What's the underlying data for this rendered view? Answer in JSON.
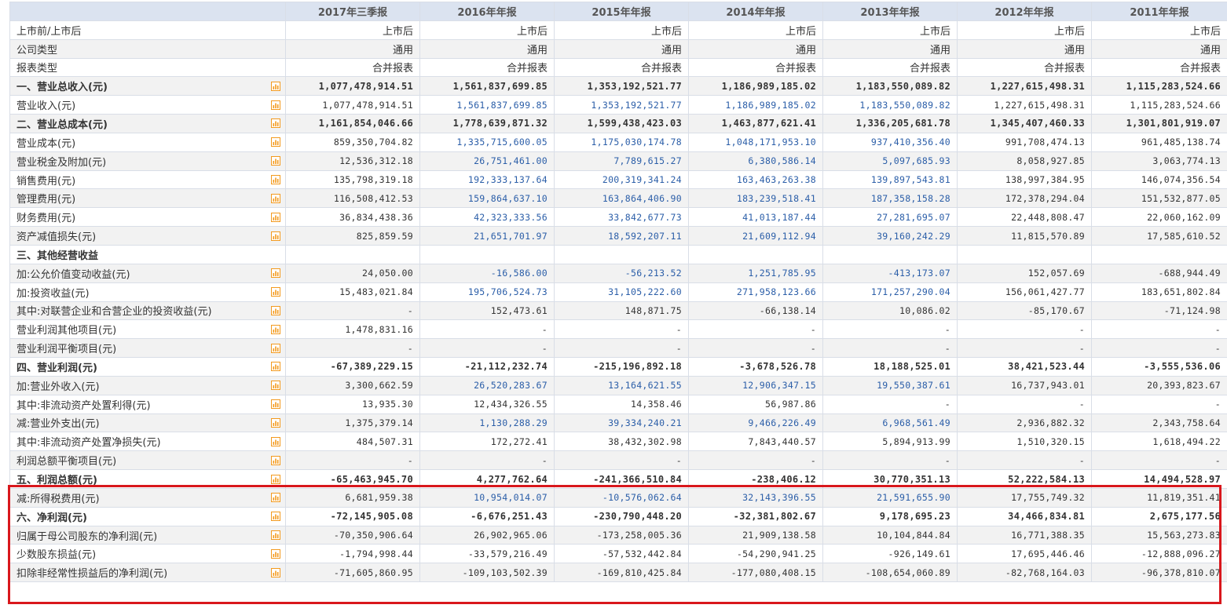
{
  "periods": [
    "2017年三季报",
    "2016年年报",
    "2015年年报",
    "2014年年报",
    "2013年年报",
    "2012年年报",
    "2011年年报"
  ],
  "icon": "bar-chart-icon",
  "colors": {
    "header_bg": "#dbe3f0",
    "link_blue": "#2b5ea8",
    "highlight_red": "#d9171c",
    "alt_row": "#f2f2f2",
    "icon_orange": "#f39a1e"
  },
  "rows": [
    {
      "label": "上市前/上市后",
      "style": "meta",
      "alt": false,
      "values": [
        "上市后",
        "上市后",
        "上市后",
        "上市后",
        "上市后",
        "上市后",
        "上市后"
      ]
    },
    {
      "label": "公司类型",
      "style": "meta",
      "alt": true,
      "values": [
        "通用",
        "通用",
        "通用",
        "通用",
        "通用",
        "通用",
        "通用"
      ]
    },
    {
      "label": "报表类型",
      "style": "meta",
      "alt": false,
      "values": [
        "合并报表",
        "合并报表",
        "合并报表",
        "合并报表",
        "合并报表",
        "合并报表",
        "合并报表"
      ]
    },
    {
      "label": "一、营业总收入(元)",
      "style": "bold",
      "alt": true,
      "icon": true,
      "values": [
        "1,077,478,914.51",
        "1,561,837,699.85",
        "1,353,192,521.77",
        "1,186,989,185.02",
        "1,183,550,089.82",
        "1,227,615,498.31",
        "1,115,283,524.66"
      ]
    },
    {
      "label": "营业收入(元)",
      "style": "indent",
      "alt": false,
      "icon": true,
      "link": true,
      "values": [
        "1,077,478,914.51",
        "1,561,837,699.85",
        "1,353,192,521.77",
        "1,186,989,185.02",
        "1,183,550,089.82",
        "1,227,615,498.31",
        "1,115,283,524.66"
      ]
    },
    {
      "label": "二、营业总成本(元)",
      "style": "bold",
      "alt": true,
      "icon": true,
      "values": [
        "1,161,854,046.66",
        "1,778,639,871.32",
        "1,599,438,423.03",
        "1,463,877,621.41",
        "1,336,205,681.78",
        "1,345,407,460.33",
        "1,301,801,919.07"
      ]
    },
    {
      "label": "营业成本(元)",
      "style": "indent",
      "alt": false,
      "icon": true,
      "link": true,
      "values": [
        "859,350,704.82",
        "1,335,715,600.05",
        "1,175,030,174.78",
        "1,048,171,953.10",
        "937,410,356.40",
        "991,708,474.13",
        "961,485,138.74"
      ]
    },
    {
      "label": "营业税金及附加(元)",
      "style": "indent",
      "alt": true,
      "icon": true,
      "link": true,
      "values": [
        "12,536,312.18",
        "26,751,461.00",
        "7,789,615.27",
        "6,380,586.14",
        "5,097,685.93",
        "8,058,927.85",
        "3,063,774.13"
      ]
    },
    {
      "label": "销售费用(元)",
      "style": "indent",
      "alt": false,
      "icon": true,
      "link": true,
      "values": [
        "135,798,319.18",
        "192,333,137.64",
        "200,319,341.24",
        "163,463,263.38",
        "139,897,543.81",
        "138,997,384.95",
        "146,074,356.54"
      ]
    },
    {
      "label": "管理费用(元)",
      "style": "indent",
      "alt": true,
      "icon": true,
      "link": true,
      "values": [
        "116,508,412.53",
        "159,864,637.10",
        "163,864,406.90",
        "183,239,518.41",
        "187,358,158.28",
        "172,378,294.04",
        "151,532,877.05"
      ]
    },
    {
      "label": "财务费用(元)",
      "style": "indent",
      "alt": false,
      "icon": true,
      "link": true,
      "values": [
        "36,834,438.36",
        "42,323,333.56",
        "33,842,677.73",
        "41,013,187.44",
        "27,281,695.07",
        "22,448,808.47",
        "22,060,162.09"
      ]
    },
    {
      "label": "资产减值损失(元)",
      "style": "indent",
      "alt": true,
      "icon": true,
      "link": true,
      "values": [
        "825,859.59",
        "21,651,701.97",
        "18,592,207.11",
        "21,609,112.94",
        "39,160,242.29",
        "11,815,570.89",
        "17,585,610.52"
      ]
    },
    {
      "label": "三、其他经营收益",
      "style": "bold",
      "alt": false,
      "icon": false,
      "values": [
        "",
        "",
        "",
        "",
        "",
        "",
        ""
      ]
    },
    {
      "label": "加:公允价值变动收益(元)",
      "style": "indent",
      "alt": true,
      "icon": true,
      "link": true,
      "values": [
        "24,050.00",
        "-16,586.00",
        "-56,213.52",
        "1,251,785.95",
        "-413,173.07",
        "152,057.69",
        "-688,944.49"
      ]
    },
    {
      "label": "加:投资收益(元)",
      "style": "indent",
      "alt": false,
      "icon": true,
      "link": true,
      "values": [
        "15,483,021.84",
        "195,706,524.73",
        "31,105,222.60",
        "271,958,123.66",
        "171,257,290.04",
        "156,061,427.77",
        "183,651,802.84"
      ]
    },
    {
      "label": "其中:对联营企业和合营企业的投资收益(元)",
      "style": "indent",
      "alt": true,
      "icon": true,
      "values": [
        "-",
        "152,473.61",
        "148,871.75",
        "-66,138.14",
        "10,086.02",
        "-85,170.67",
        "-71,124.98"
      ]
    },
    {
      "label": "营业利润其他项目(元)",
      "style": "indent",
      "alt": false,
      "icon": true,
      "values": [
        "1,478,831.16",
        "-",
        "-",
        "-",
        "-",
        "-",
        "-"
      ]
    },
    {
      "label": "营业利润平衡项目(元)",
      "style": "indent",
      "alt": true,
      "icon": true,
      "values": [
        "-",
        "-",
        "-",
        "-",
        "-",
        "-",
        "-"
      ]
    },
    {
      "label": "四、营业利润(元)",
      "style": "bold",
      "alt": false,
      "icon": true,
      "values": [
        "-67,389,229.15",
        "-21,112,232.74",
        "-215,196,892.18",
        "-3,678,526.78",
        "18,188,525.01",
        "38,421,523.44",
        "-3,555,536.06"
      ]
    },
    {
      "label": "加:营业外收入(元)",
      "style": "indent",
      "alt": true,
      "icon": true,
      "link": true,
      "values": [
        "3,300,662.59",
        "26,520,283.67",
        "13,164,621.55",
        "12,906,347.15",
        "19,550,387.61",
        "16,737,943.01",
        "20,393,823.67"
      ]
    },
    {
      "label": "其中:非流动资产处置利得(元)",
      "style": "indent",
      "alt": false,
      "icon": true,
      "values": [
        "13,935.30",
        "12,434,326.55",
        "14,358.46",
        "56,987.86",
        "-",
        "-",
        "-"
      ]
    },
    {
      "label": "减:营业外支出(元)",
      "style": "indent",
      "alt": true,
      "icon": true,
      "link": true,
      "values": [
        "1,375,379.14",
        "1,130,288.29",
        "39,334,240.21",
        "9,466,226.49",
        "6,968,561.49",
        "2,936,882.32",
        "2,343,758.64"
      ]
    },
    {
      "label": "其中:非流动资产处置净损失(元)",
      "style": "indent",
      "alt": false,
      "icon": true,
      "values": [
        "484,507.31",
        "172,272.41",
        "38,432,302.98",
        "7,843,440.57",
        "5,894,913.99",
        "1,510,320.15",
        "1,618,494.22"
      ]
    },
    {
      "label": "利润总额平衡项目(元)",
      "style": "indent",
      "alt": true,
      "icon": true,
      "values": [
        "-",
        "-",
        "-",
        "-",
        "-",
        "-",
        "-"
      ]
    },
    {
      "label": "五、利润总额(元)",
      "style": "bold",
      "alt": false,
      "icon": true,
      "values": [
        "-65,463,945.70",
        "4,277,762.64",
        "-241,366,510.84",
        "-238,406.12",
        "30,770,351.13",
        "52,222,584.13",
        "14,494,528.97"
      ]
    },
    {
      "label": "减:所得税费用(元)",
      "style": "indent",
      "alt": true,
      "icon": true,
      "link": true,
      "values": [
        "6,681,959.38",
        "10,954,014.07",
        "-10,576,062.64",
        "32,143,396.55",
        "21,591,655.90",
        "17,755,749.32",
        "11,819,351.41"
      ]
    },
    {
      "label": "六、净利润(元)",
      "style": "bold",
      "alt": false,
      "icon": true,
      "values": [
        "-72,145,905.08",
        "-6,676,251.43",
        "-230,790,448.20",
        "-32,381,802.67",
        "9,178,695.23",
        "34,466,834.81",
        "2,675,177.56"
      ]
    },
    {
      "label": "归属于母公司股东的净利润(元)",
      "style": "indent",
      "alt": true,
      "icon": true,
      "values": [
        "-70,350,906.64",
        "26,902,965.06",
        "-173,258,005.36",
        "21,909,138.58",
        "10,104,844.84",
        "16,771,388.35",
        "15,563,273.83"
      ]
    },
    {
      "label": "少数股东损益(元)",
      "style": "indent",
      "alt": false,
      "icon": true,
      "values": [
        "-1,794,998.44",
        "-33,579,216.49",
        "-57,532,442.84",
        "-54,290,941.25",
        "-926,149.61",
        "17,695,446.46",
        "-12,888,096.27"
      ]
    },
    {
      "label": "扣除非经常性损益后的净利润(元)",
      "style": "indent",
      "alt": true,
      "icon": true,
      "values": [
        "-71,605,860.95",
        "-109,103,502.39",
        "-169,810,425.84",
        "-177,080,408.15",
        "-108,654,060.89",
        "-82,768,164.03",
        "-96,378,810.07"
      ]
    }
  ]
}
